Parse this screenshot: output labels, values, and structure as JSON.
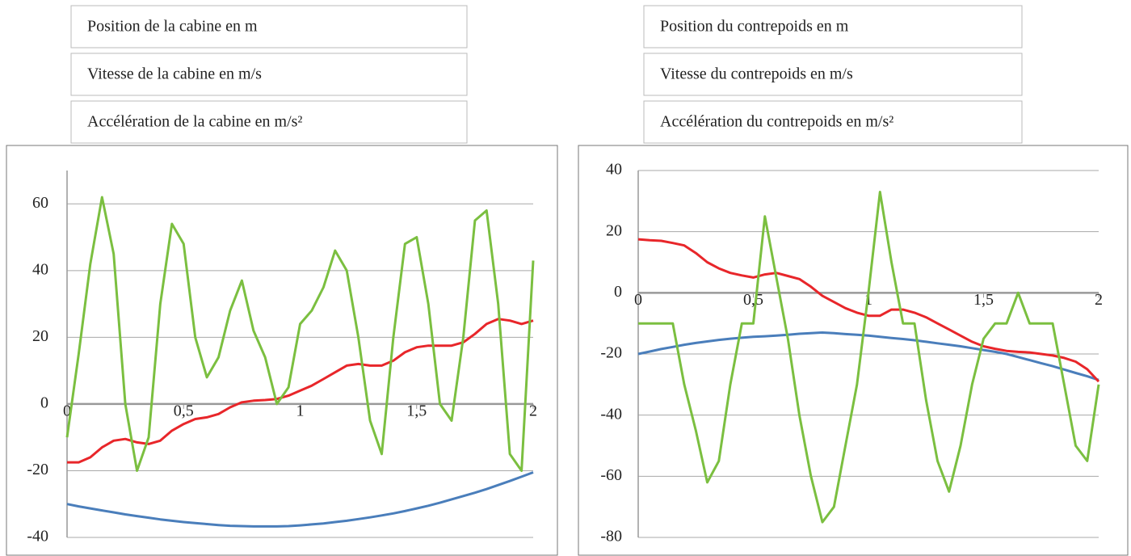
{
  "chart_data": [
    {
      "type": "line",
      "x": [
        0,
        0.05,
        0.1,
        0.15,
        0.2,
        0.25,
        0.3,
        0.35,
        0.4,
        0.45,
        0.5,
        0.55,
        0.6,
        0.65,
        0.7,
        0.75,
        0.8,
        0.85,
        0.9,
        0.95,
        1,
        1.05,
        1.1,
        1.15,
        1.2,
        1.25,
        1.3,
        1.35,
        1.4,
        1.45,
        1.5,
        1.55,
        1.6,
        1.65,
        1.7,
        1.75,
        1.8,
        1.85,
        1.9,
        1.95,
        2
      ],
      "xlim": [
        0,
        2
      ],
      "xticks": [
        0,
        {
          "value": 0.5,
          "label": "0,5"
        },
        1,
        {
          "value": 1.5,
          "label": "1,5"
        },
        2
      ],
      "ylim": [
        -40,
        70
      ],
      "yticks": [
        -40,
        -20,
        0,
        20,
        40,
        60
      ],
      "grid": true,
      "series": [
        {
          "name": "Position de la cabine en m",
          "color": "#4a7ebb",
          "values": [
            -30,
            -30.7,
            -31.3,
            -31.9,
            -32.5,
            -33.1,
            -33.6,
            -34.1,
            -34.6,
            -35,
            -35.4,
            -35.7,
            -36,
            -36.3,
            -36.5,
            -36.6,
            -36.7,
            -36.7,
            -36.7,
            -36.6,
            -36.4,
            -36.1,
            -35.8,
            -35.4,
            -35,
            -34.5,
            -34,
            -33.4,
            -32.8,
            -32.1,
            -31.3,
            -30.5,
            -29.6,
            -28.6,
            -27.6,
            -26.6,
            -25.5,
            -24.3,
            -23.1,
            -21.8,
            -20.5
          ]
        },
        {
          "name": "Vitesse de la cabine en m/s",
          "color": "#e8262a",
          "values": [
            -17.5,
            -17.5,
            -16,
            -13,
            -11,
            -10.5,
            -11.5,
            -12,
            -11,
            -8,
            -6,
            -4.5,
            -4,
            -3,
            -1,
            0.5,
            1,
            1.2,
            1.5,
            2.5,
            4,
            5.5,
            7.5,
            9.5,
            11.5,
            12,
            11.5,
            11.5,
            13,
            15.5,
            17,
            17.5,
            17.5,
            17.5,
            18.5,
            21,
            24,
            25.5,
            25,
            24,
            25
          ]
        },
        {
          "name": "Accélération de la cabine en m/s²",
          "color": "#7bbf40",
          "values": [
            -10,
            15,
            42,
            62,
            45,
            0,
            -20,
            -10,
            30,
            54,
            48,
            20,
            8,
            14,
            28,
            37,
            22,
            14,
            0,
            5,
            24,
            28,
            35,
            46,
            40,
            20,
            -5,
            -15,
            20,
            48,
            50,
            30,
            0,
            -5,
            20,
            55,
            58,
            30,
            -15,
            -20,
            43
          ]
        }
      ]
    },
    {
      "type": "line",
      "x": [
        0,
        0.05,
        0.1,
        0.15,
        0.2,
        0.25,
        0.3,
        0.35,
        0.4,
        0.45,
        0.5,
        0.55,
        0.6,
        0.65,
        0.7,
        0.75,
        0.8,
        0.85,
        0.9,
        0.95,
        1,
        1.05,
        1.1,
        1.15,
        1.2,
        1.25,
        1.3,
        1.35,
        1.4,
        1.45,
        1.5,
        1.55,
        1.6,
        1.65,
        1.7,
        1.75,
        1.8,
        1.85,
        1.9,
        1.95,
        2
      ],
      "xlim": [
        0,
        2
      ],
      "xticks": [
        0,
        {
          "value": 0.5,
          "label": "0,5"
        },
        1,
        {
          "value": 1.5,
          "label": "1,5"
        },
        2
      ],
      "ylim": [
        -80,
        40
      ],
      "yticks": [
        -80,
        -60,
        -40,
        -20,
        0,
        20,
        40
      ],
      "grid": true,
      "series": [
        {
          "name": "Position du contrepoids en m",
          "color": "#4a7ebb",
          "values": [
            -20,
            -19.2,
            -18.4,
            -17.7,
            -17,
            -16.4,
            -15.9,
            -15.4,
            -15,
            -14.7,
            -14.4,
            -14.2,
            -14,
            -13.7,
            -13.4,
            -13.2,
            -13,
            -13.2,
            -13.5,
            -13.7,
            -14,
            -14.4,
            -14.8,
            -15.1,
            -15.5,
            -16,
            -16.5,
            -17,
            -17.5,
            -18.1,
            -18.7,
            -19.3,
            -20,
            -21,
            -22,
            -23,
            -24,
            -25.1,
            -26.2,
            -27.3,
            -28.5
          ]
        },
        {
          "name": "Vitesse du contrepoids en m/s",
          "color": "#e8262a",
          "values": [
            17.5,
            17.2,
            17,
            16.3,
            15.5,
            13,
            10,
            8,
            6.5,
            5.7,
            5,
            6,
            6.5,
            5.5,
            4.5,
            2,
            -1,
            -3,
            -5,
            -6.5,
            -7.5,
            -7.5,
            -5.5,
            -5.5,
            -6.5,
            -8,
            -10,
            -12,
            -14,
            -16,
            -17.5,
            -18.3,
            -19,
            -19.3,
            -19.5,
            -20,
            -20.5,
            -21.3,
            -22.5,
            -25,
            -29
          ]
        },
        {
          "name": "Accélération du contrepoids en m/s²",
          "color": "#7bbf40",
          "values": [
            -10,
            -10,
            -10,
            -10,
            -30,
            -45,
            -62,
            -55,
            -30,
            -10,
            -10,
            25,
            5,
            -15,
            -40,
            -60,
            -75,
            -70,
            -50,
            -30,
            0,
            33,
            10,
            -10,
            -10,
            -35,
            -55,
            -65,
            -50,
            -30,
            -15,
            -10,
            -10,
            0,
            -10,
            -10,
            -10,
            -30,
            -50,
            -55,
            -30
          ]
        }
      ]
    }
  ]
}
